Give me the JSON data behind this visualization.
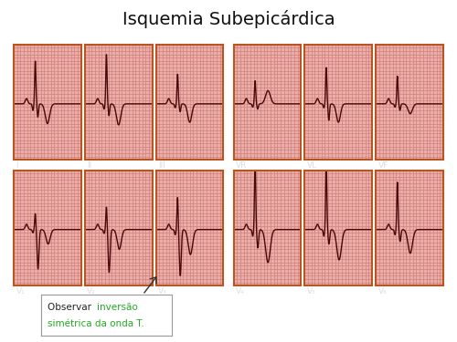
{
  "title": "Isquemia Subepicárdica",
  "title_fontsize": 14,
  "title_color": "#111111",
  "bg_color": "#485870",
  "panel_bg": "#f0b8b0",
  "grid_color_major": "#d08080",
  "grid_color_minor": "#e8a8a0",
  "ecg_color": "#4a0808",
  "border_color": "#b85520",
  "white_bg": "#ffffff",
  "orange_line_color": "#d06010",
  "row1_labels": [
    "I",
    "II",
    "III",
    "VR",
    "VL",
    "VF"
  ],
  "row2_labels": [
    "V₁",
    "V₂",
    "V₃",
    "V₄",
    "V₅",
    "V₆"
  ],
  "annotation_black": "Observar ",
  "annotation_green": "inversão\nsimétrica da onda T.",
  "annotation_color_black": "#222222",
  "annotation_color_green": "#22aa22",
  "label_color": "#dddddd",
  "label_fontsize": 6.5
}
